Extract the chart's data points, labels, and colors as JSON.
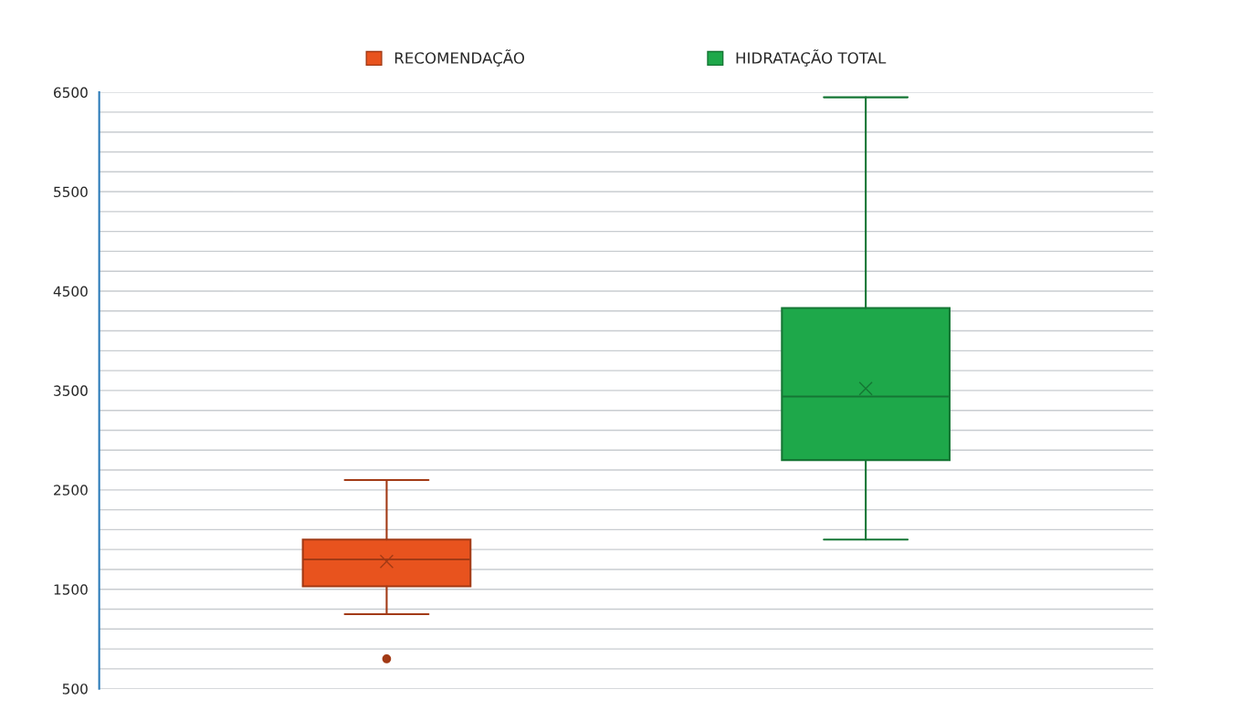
{
  "chart_data": {
    "type": "box",
    "categories": [
      null,
      null
    ],
    "series": [
      {
        "name": "RECOMENDAÇÃO",
        "color": "#e8531e",
        "boxes": [
          {
            "low": 1250,
            "q1": 1530,
            "median": 1800,
            "q3": 2000,
            "high": 2600,
            "mean": 1780,
            "outliers": [
              800
            ]
          },
          null
        ]
      },
      {
        "name": "HIDRATAÇÃO TOTAL",
        "color": "#1ea84a",
        "boxes": [
          null,
          {
            "low": 2000,
            "q1": 2800,
            "median": 3440,
            "q3": 4330,
            "high": 6450,
            "mean": 3520
          }
        ]
      }
    ],
    "ylim": [
      500,
      6500
    ],
    "yticks": [
      500,
      {
        "value": 700,
        "label": null
      },
      {
        "value": 900,
        "label": null
      },
      {
        "value": 1100,
        "label": null
      },
      {
        "value": 1300,
        "label": null
      },
      1500,
      {
        "value": 1700,
        "label": null
      },
      {
        "value": 1900,
        "label": null
      },
      {
        "value": 2100,
        "label": null
      },
      {
        "value": 2300,
        "label": null
      },
      2500,
      {
        "value": 2700,
        "label": null
      },
      {
        "value": 2900,
        "label": null
      },
      {
        "value": 3100,
        "label": null
      },
      {
        "value": 3300,
        "label": null
      },
      3500,
      {
        "value": 3700,
        "label": null
      },
      {
        "value": 3900,
        "label": null
      },
      {
        "value": 4100,
        "label": null
      },
      {
        "value": 4300,
        "label": null
      },
      4500,
      {
        "value": 4700,
        "label": null
      },
      {
        "value": 4900,
        "label": null
      },
      {
        "value": 5100,
        "label": null
      },
      {
        "value": 5300,
        "label": null
      },
      5500,
      {
        "value": 5700,
        "label": null
      },
      {
        "value": 5900,
        "label": null
      },
      {
        "value": 6100,
        "label": null
      },
      {
        "value": 6300,
        "label": null
      },
      6500
    ],
    "grid": "y",
    "legend": "top",
    "marker": "circle"
  }
}
